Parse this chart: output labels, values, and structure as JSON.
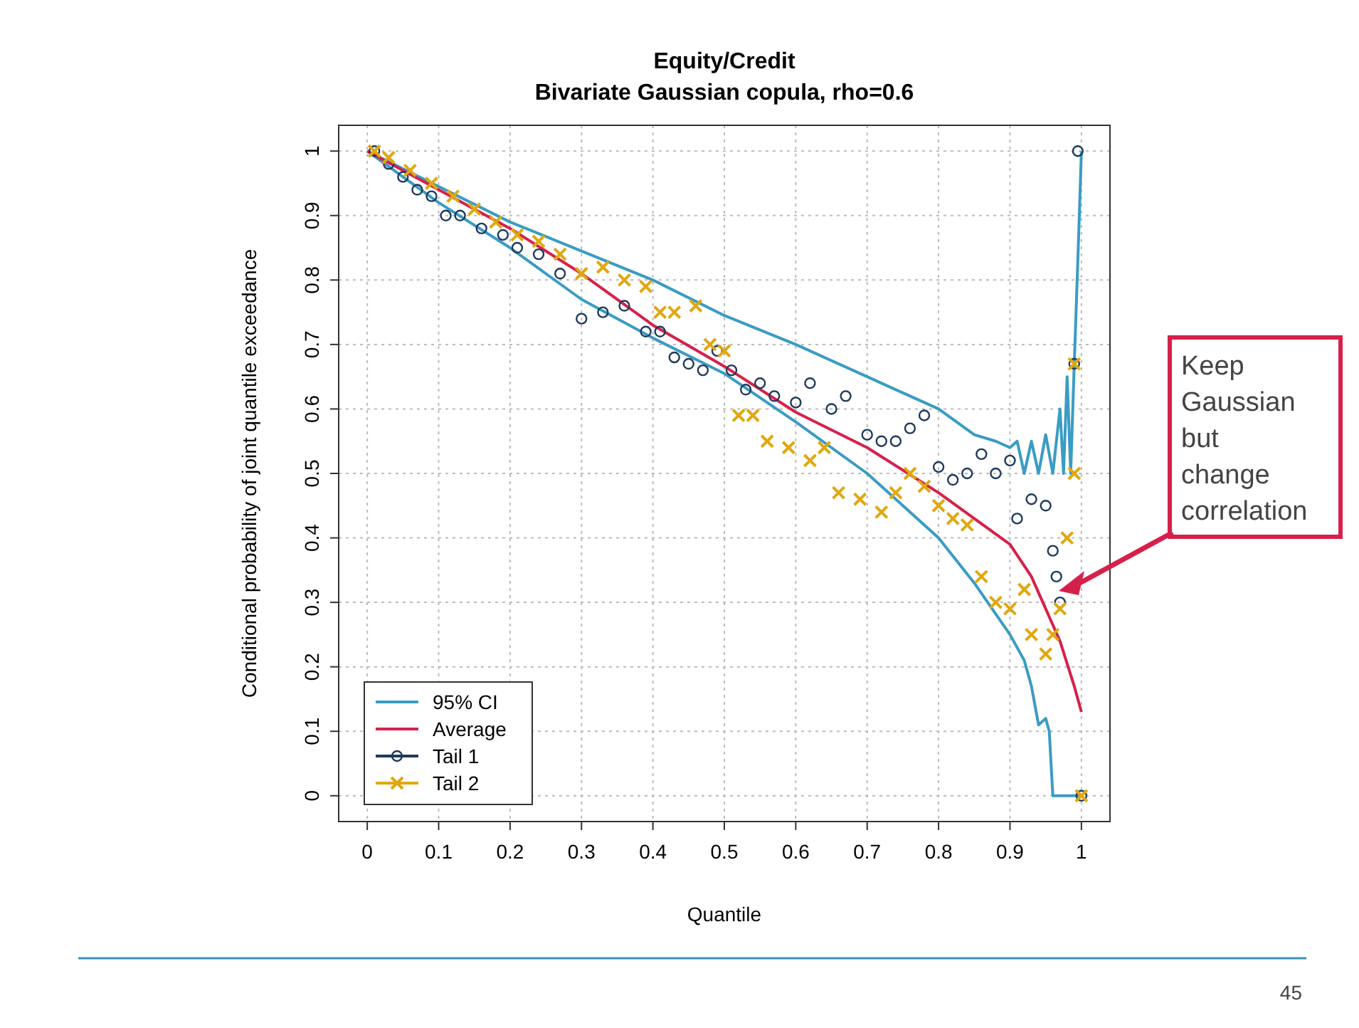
{
  "chart_data": {
    "type": "line",
    "title": "Equity/Credit",
    "subtitle": "Bivariate Gaussian copula, rho=0.6",
    "xlabel": "Quantile",
    "ylabel": "Conditional probability of joint quantile exceedance",
    "xlim": [
      -0.04,
      1.04
    ],
    "ylim": [
      -0.04,
      1.04
    ],
    "xticks": [
      0,
      0.1,
      0.2,
      0.3,
      0.4,
      0.5,
      0.6,
      0.7,
      0.8,
      0.9,
      1
    ],
    "yticks": [
      0,
      0.1,
      0.2,
      0.3,
      0.4,
      0.5,
      0.6,
      0.7,
      0.8,
      0.9,
      1
    ],
    "grid": true,
    "legend": "bottom left",
    "line_style": "solid",
    "series": [
      {
        "name": "95% CI",
        "color": "#3a9cc3",
        "x": [
          0,
          0.1,
          0.2,
          0.3,
          0.4,
          0.5,
          0.6,
          0.7,
          0.8,
          0.85,
          0.88,
          0.9,
          0.91,
          0.92,
          0.93,
          0.94,
          0.95,
          0.96,
          0.97,
          0.975,
          0.98,
          0.985,
          0.99,
          0.995,
          1
        ],
        "values": [
          1,
          0.945,
          0.89,
          0.845,
          0.8,
          0.745,
          0.7,
          0.65,
          0.6,
          0.56,
          0.55,
          0.54,
          0.55,
          0.5,
          0.55,
          0.5,
          0.56,
          0.5,
          0.6,
          0.5,
          0.65,
          0.5,
          0.67,
          0.83,
          1
        ]
      },
      {
        "color": "#3a9cc3",
        "x": [
          0,
          0.1,
          0.2,
          0.3,
          0.4,
          0.5,
          0.6,
          0.7,
          0.75,
          0.8,
          0.85,
          0.9,
          0.92,
          0.93,
          0.94,
          0.95,
          0.955,
          0.96,
          1
        ],
        "values": [
          1,
          0.92,
          0.85,
          0.77,
          0.71,
          0.655,
          0.58,
          0.5,
          0.45,
          0.4,
          0.33,
          0.25,
          0.21,
          0.17,
          0.11,
          0.12,
          0.1,
          0,
          0
        ]
      },
      {
        "name": "Average",
        "color": "#d6204a",
        "x": [
          0,
          0.1,
          0.2,
          0.3,
          0.4,
          0.5,
          0.6,
          0.7,
          0.8,
          0.85,
          0.9,
          0.93,
          0.95,
          0.97,
          0.99,
          1
        ],
        "values": [
          1,
          0.94,
          0.88,
          0.81,
          0.73,
          0.666,
          0.595,
          0.54,
          0.47,
          0.43,
          0.39,
          0.34,
          0.29,
          0.24,
          0.17,
          0.13
        ]
      },
      {
        "name": "Tail 1",
        "type": "scatter",
        "marker": "circle",
        "color": "#1f3a5c",
        "x": [
          0.01,
          0.03,
          0.05,
          0.07,
          0.09,
          0.11,
          0.13,
          0.16,
          0.19,
          0.21,
          0.24,
          0.27,
          0.3,
          0.33,
          0.36,
          0.39,
          0.41,
          0.43,
          0.45,
          0.47,
          0.49,
          0.51,
          0.53,
          0.55,
          0.57,
          0.6,
          0.62,
          0.65,
          0.67,
          0.7,
          0.72,
          0.74,
          0.76,
          0.78,
          0.8,
          0.82,
          0.84,
          0.86,
          0.88,
          0.9,
          0.91,
          0.93,
          0.95,
          0.96,
          0.965,
          0.97,
          0.99,
          0.995,
          1
        ],
        "values": [
          1,
          0.98,
          0.96,
          0.94,
          0.93,
          0.9,
          0.9,
          0.88,
          0.87,
          0.85,
          0.84,
          0.81,
          0.74,
          0.75,
          0.76,
          0.72,
          0.72,
          0.68,
          0.67,
          0.66,
          0.69,
          0.66,
          0.63,
          0.64,
          0.62,
          0.61,
          0.64,
          0.6,
          0.62,
          0.56,
          0.55,
          0.55,
          0.57,
          0.59,
          0.51,
          0.49,
          0.5,
          0.53,
          0.5,
          0.52,
          0.43,
          0.46,
          0.45,
          0.38,
          0.34,
          0.3,
          0.67,
          1,
          0
        ]
      },
      {
        "name": "Tail 2",
        "type": "scatter",
        "marker": "cross",
        "color": "#e0a810",
        "x": [
          0.01,
          0.03,
          0.06,
          0.09,
          0.12,
          0.15,
          0.18,
          0.21,
          0.24,
          0.27,
          0.3,
          0.33,
          0.36,
          0.39,
          0.41,
          0.43,
          0.46,
          0.48,
          0.5,
          0.52,
          0.54,
          0.56,
          0.59,
          0.62,
          0.64,
          0.66,
          0.69,
          0.72,
          0.74,
          0.76,
          0.78,
          0.8,
          0.82,
          0.84,
          0.86,
          0.88,
          0.9,
          0.92,
          0.93,
          0.95,
          0.96,
          0.97,
          0.98,
          0.99,
          0.99,
          1
        ],
        "values": [
          1,
          0.99,
          0.97,
          0.95,
          0.93,
          0.91,
          0.89,
          0.87,
          0.86,
          0.84,
          0.81,
          0.82,
          0.8,
          0.79,
          0.75,
          0.75,
          0.76,
          0.7,
          0.69,
          0.59,
          0.59,
          0.55,
          0.54,
          0.52,
          0.54,
          0.47,
          0.46,
          0.44,
          0.47,
          0.5,
          0.48,
          0.45,
          0.43,
          0.42,
          0.34,
          0.3,
          0.29,
          0.32,
          0.25,
          0.22,
          0.25,
          0.29,
          0.4,
          0.5,
          0.67,
          0
        ]
      }
    ],
    "annotations": [
      "Keep Gaussian but change correlation",
      "45"
    ]
  }
}
